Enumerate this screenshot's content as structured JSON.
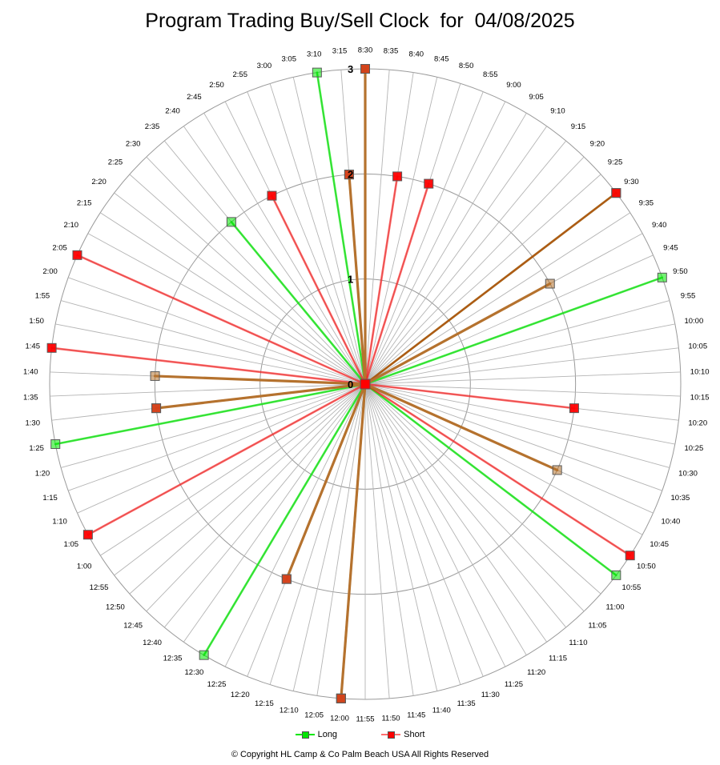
{
  "title": "Program Trading Buy/Sell Clock  for  04/08/2025",
  "copyright": "© Copyright  HL Camp & Co  Palm Beach  USA  All Rights Reserved",
  "chart_data": {
    "type": "radar",
    "radial_ticks": [
      "0",
      "1",
      "2",
      "3"
    ],
    "rmax": 3,
    "categories": [
      "8:30",
      "8:35",
      "8:40",
      "8:45",
      "8:50",
      "8:55",
      "9:00",
      "9:05",
      "9:10",
      "9:15",
      "9:20",
      "9:25",
      "9:30",
      "9:35",
      "9:40",
      "9:45",
      "9:50",
      "9:55",
      "10:00",
      "10:05",
      "10:10",
      "10:15",
      "10:20",
      "10:25",
      "10:30",
      "10:35",
      "10:40",
      "10:45",
      "10:50",
      "10:55",
      "11:00",
      "11:05",
      "11:10",
      "11:15",
      "11:20",
      "11:25",
      "11:30",
      "11:35",
      "11:40",
      "11:45",
      "11:50",
      "11:55",
      "12:00",
      "12:05",
      "12:10",
      "12:15",
      "12:20",
      "12:25",
      "12:30",
      "12:35",
      "12:40",
      "12:45",
      "12:50",
      "12:55",
      "1:00",
      "1:05",
      "1:10",
      "1:15",
      "1:20",
      "1:25",
      "1:30",
      "1:35",
      "1:40",
      "1:45",
      "1:50",
      "1:55",
      "2:00",
      "2:05",
      "2:10",
      "2:15",
      "2:20",
      "2:25",
      "2:30",
      "2:35",
      "2:40",
      "2:45",
      "2:50",
      "2:55",
      "3:00",
      "3:05",
      "3:10",
      "3:15"
    ],
    "series": [
      {
        "name": "Long",
        "color": "#00e600",
        "points": [
          {
            "time": "8:30",
            "value": 3
          },
          {
            "time": "9:30",
            "value": 3
          },
          {
            "time": "9:50",
            "value": 3
          },
          {
            "time": "10:55",
            "value": 3
          },
          {
            "time": "12:00",
            "value": 3
          },
          {
            "time": "12:30",
            "value": 3
          },
          {
            "time": "1:25",
            "value": 3
          },
          {
            "time": "2:35",
            "value": 2
          },
          {
            "time": "3:10",
            "value": 3
          }
        ]
      },
      {
        "name": "Short",
        "color": "#ff0000",
        "points": [
          {
            "time": "8:30",
            "value": 3
          },
          {
            "time": "8:40",
            "value": 2
          },
          {
            "time": "8:50",
            "value": 2
          },
          {
            "time": "9:30",
            "value": 3
          },
          {
            "time": "10:20",
            "value": 2
          },
          {
            "time": "10:50",
            "value": 3
          },
          {
            "time": "12:00",
            "value": 3
          },
          {
            "time": "12:20",
            "value": 2
          },
          {
            "time": "1:05",
            "value": 3
          },
          {
            "time": "1:30",
            "value": 2
          },
          {
            "time": "1:45",
            "value": 3
          },
          {
            "time": "2:05",
            "value": 3
          },
          {
            "time": "2:50",
            "value": 2
          },
          {
            "time": "3:15",
            "value": 2
          }
        ]
      }
    ],
    "neutral_spokes": [
      {
        "time": "8:30",
        "value": 3
      },
      {
        "time": "9:40",
        "value": 2
      },
      {
        "time": "10:40",
        "value": 2
      },
      {
        "time": "12:00",
        "value": 3
      },
      {
        "time": "12:20",
        "value": 2
      },
      {
        "time": "1:30",
        "value": 2
      },
      {
        "time": "1:40",
        "value": 2
      },
      {
        "time": "3:15",
        "value": 2
      }
    ],
    "neutral_color": "#b5722e",
    "legend": "bottom"
  }
}
